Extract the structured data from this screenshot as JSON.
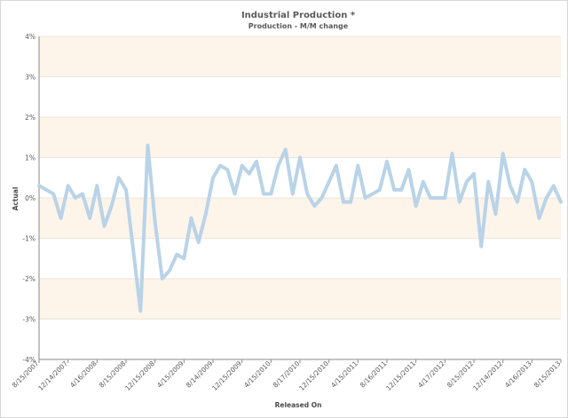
{
  "chart_data": {
    "type": "line",
    "title": "Industrial Production *",
    "subtitle": "Production - M/M change",
    "xlabel": "Released On",
    "ylabel": "Actual",
    "ylim": [
      -4,
      4
    ],
    "yticks": [
      "4%",
      "3%",
      "2%",
      "1%",
      "0%",
      "-1%",
      "-2%",
      "-3%",
      "-4%"
    ],
    "xticks": [
      "8/15/2007",
      "12/14/2007",
      "4/16/2008",
      "8/15/2008",
      "12/15/2008",
      "4/15/2009",
      "8/14/2009",
      "12/15/2009",
      "4/15/2010",
      "8/17/2010",
      "12/15/2010",
      "4/15/2011",
      "8/16/2011",
      "12/15/2011",
      "4/17/2012",
      "8/15/2012",
      "12/14/2012",
      "4/16/2013",
      "8/15/2013"
    ],
    "band_colors": [
      "#fdf4ea",
      "#ffffff"
    ],
    "line_color": "#b9d3e8",
    "series": [
      {
        "values": [
          0.3,
          0.2,
          0.1,
          -0.5,
          0.3,
          0.0,
          0.1,
          -0.5,
          0.3,
          -0.7,
          -0.2,
          0.5,
          0.2,
          -1.3,
          -2.8,
          1.3,
          -0.6,
          -2.0,
          -1.8,
          -1.4,
          -1.5,
          -0.5,
          -1.1,
          -0.4,
          0.5,
          0.8,
          0.7,
          0.1,
          0.8,
          0.6,
          0.9,
          0.1,
          0.1,
          0.8,
          1.2,
          0.1,
          1.0,
          0.1,
          -0.2,
          0.0,
          0.4,
          0.8,
          -0.1,
          -0.1,
          0.8,
          0.0,
          0.1,
          0.2,
          0.9,
          0.2,
          0.2,
          0.7,
          -0.2,
          0.4,
          0.0,
          0.0,
          0.0,
          1.1,
          -0.1,
          0.4,
          0.6,
          -1.2,
          0.4,
          -0.4,
          1.1,
          0.3,
          -0.1,
          0.7,
          0.4,
          -0.5,
          0.0,
          0.3,
          -0.1
        ]
      }
    ]
  }
}
